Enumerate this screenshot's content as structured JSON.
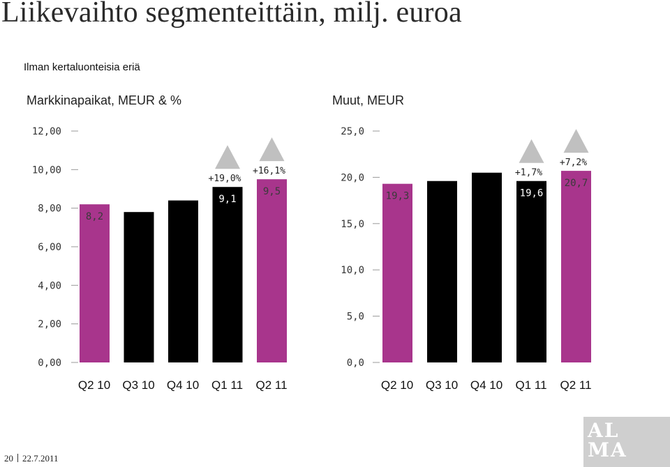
{
  "title": "Liikevaihto segmenteittäin, milj. euroa",
  "subtitle": "Ilman kertaluonteisia eriä",
  "colors": {
    "highlight": "#a8358c",
    "default": "#000000",
    "triangle": "#c0c0c0",
    "axis_text": "#333333"
  },
  "chart_data": [
    {
      "type": "bar",
      "title": "Markkinapaikat, MEUR & %",
      "categories": [
        "Q2 10",
        "Q3 10",
        "Q4 10",
        "Q1 11",
        "Q2 11"
      ],
      "values": [
        8.2,
        7.8,
        8.4,
        9.1,
        9.5
      ],
      "data_labels": [
        "8,2",
        "",
        "",
        "9,1",
        "9,5"
      ],
      "bar_colors": [
        "highlight",
        "default",
        "default",
        "default",
        "highlight"
      ],
      "growth_labels": [
        "",
        "",
        "",
        "+19,0%",
        "+16,1%"
      ],
      "ylim": [
        0,
        12
      ],
      "yticks": [
        "0,00",
        "2,00",
        "4,00",
        "6,00",
        "8,00",
        "10,00",
        "12,00"
      ]
    },
    {
      "type": "bar",
      "title": "Muut, MEUR",
      "categories": [
        "Q2 10",
        "Q3 10",
        "Q4 10",
        "Q1 11",
        "Q2 11"
      ],
      "values": [
        19.3,
        19.6,
        20.5,
        19.6,
        20.7
      ],
      "data_labels": [
        "19,3",
        "",
        "",
        "19,6",
        "20,7"
      ],
      "bar_colors": [
        "highlight",
        "default",
        "default",
        "default",
        "highlight"
      ],
      "growth_labels": [
        "",
        "",
        "",
        "+1,7%",
        "+7,2%"
      ],
      "ylim": [
        0,
        25
      ],
      "yticks": [
        "0,0",
        "5,0",
        "10,0",
        "15,0",
        "20,0",
        "25,0"
      ]
    }
  ],
  "footer": {
    "page": "20",
    "date": "22.7.2011"
  },
  "logo": {
    "line1": "AL",
    "line2": "MA"
  }
}
